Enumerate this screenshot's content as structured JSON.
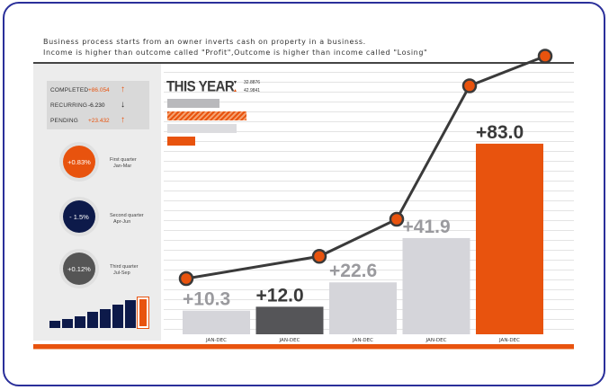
{
  "intro": {
    "line1": "Business process starts from an owner inverts cash on property in a business.",
    "line2": "Income is higher than outcome called \"Profit\",Outcome is higher than income called \"Losing\""
  },
  "metrics": [
    {
      "label": "COMPLETED",
      "value": "+86.054",
      "arrow": "🡑",
      "value_color": "orange"
    },
    {
      "label": "RECURRING",
      "value": "-6.230",
      "arrow": "🡓",
      "value_color": "dark"
    },
    {
      "label": "PENDING",
      "value": "+23.432",
      "arrow": "🡑",
      "value_color": "orange"
    }
  ],
  "quarters": [
    {
      "value": "+0.83%",
      "name": "First quarter",
      "range": "Jan-Mar",
      "color": "#e8530e"
    },
    {
      "value": "- 1.5%",
      "name": "Second quarter",
      "range": "Apr-Jun",
      "color": "#0d1a4a"
    },
    {
      "value": "+0.12%",
      "name": "Third quarter",
      "range": "Jul-Sep",
      "color": "#555555"
    }
  ],
  "mini_chart": {
    "values": [
      1,
      1.2,
      1.6,
      2.2,
      2.6,
      3.2,
      3.8,
      4.2
    ],
    "colors": [
      "#0d1a4a",
      "#0d1a4a",
      "#0d1a4a",
      "#0d1a4a",
      "#0d1a4a",
      "#0d1a4a",
      "#0d1a4a",
      "#e8530e"
    ],
    "highlight": [
      "#0d1a4a",
      "#0d1a4a",
      "#0d1a4a",
      "#ffffff",
      "#0d1a4a",
      "#0d1a4a",
      "#0d1a4a",
      "#e8530e"
    ]
  },
  "this_year": {
    "title": "THIS YEAR",
    "legend": [
      {
        "marker": "▼",
        "value": "32.8876",
        "color": "#222222"
      },
      {
        "marker": "▲",
        "value": "42.9841",
        "color": "#e8530e"
      }
    ],
    "bars": [
      {
        "value": 0.66,
        "style": "gray"
      },
      {
        "value": 1.0,
        "style": "hatched"
      },
      {
        "value": 0.88,
        "style": "lightgray"
      },
      {
        "value": 0.35,
        "style": "orange"
      }
    ]
  },
  "chart_data": {
    "type": "bar",
    "title": "",
    "categories": [
      "JAN-DEC",
      "JAN-DEC",
      "JAN-DEC",
      "JAN-DEC",
      "JAN-DEC"
    ],
    "values": [
      10.3,
      12.0,
      22.6,
      41.9,
      83.0
    ],
    "value_labels": [
      "+10.3",
      "+12.0",
      "+22.6",
      "+41.9",
      "+83.0"
    ],
    "bar_colors": [
      "#d5d5da",
      "#555558",
      "#d5d5da",
      "#d5d5da",
      "#e8530e"
    ],
    "label_colors": [
      "#9a9a9e",
      "#3a3a3a",
      "#9a9a9e",
      "#9a9a9e",
      "#3a3a3a"
    ],
    "ylim": [
      0,
      90
    ],
    "line_series": {
      "name": "trend",
      "values": [
        38,
        41,
        46,
        54,
        64,
        68
      ]
    },
    "line_ylim": [
      30,
      70
    ],
    "xlabel": "",
    "ylabel": ""
  }
}
